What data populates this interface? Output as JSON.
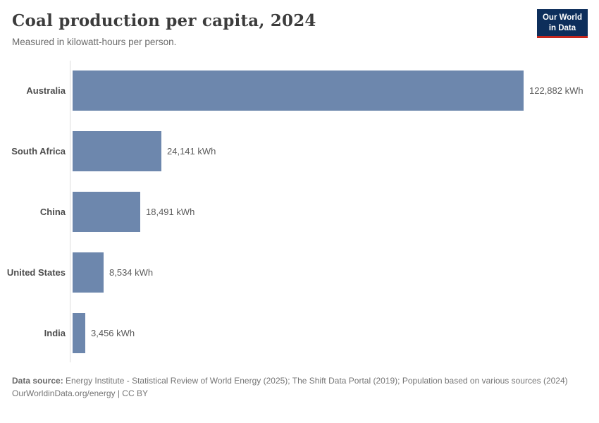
{
  "header": {
    "title": "Coal production per capita, 2024",
    "subtitle": "Measured in kilowatt-hours per person.",
    "logo": {
      "line1": "Our World",
      "line2": "in Data",
      "bg_color": "#0d2e5b",
      "accent_color": "#c5271d"
    }
  },
  "chart_data": {
    "type": "bar",
    "orientation": "horizontal",
    "title": "Coal production per capita, 2024",
    "subtitle": "Measured in kilowatt-hours per person.",
    "categories": [
      "Australia",
      "South Africa",
      "China",
      "United States",
      "India"
    ],
    "values": [
      122882,
      24141,
      18491,
      8534,
      3456
    ],
    "value_labels": [
      "122,882 kWh",
      "24,141 kWh",
      "18,491 kWh",
      "8,534 kWh",
      "3,456 kWh"
    ],
    "unit": "kWh",
    "xlabel": "",
    "ylabel": "",
    "xlim": [
      0,
      122882
    ],
    "grid": false,
    "legend": "none",
    "bar_color": "#6d87ad"
  },
  "footer": {
    "source_label": "Data source:",
    "source_text": "Energy Institute - Statistical Review of World Energy (2025); The Shift Data Portal (2019); Population based on various sources (2024)",
    "link_text": "OurWorldinData.org/energy | CC BY"
  }
}
